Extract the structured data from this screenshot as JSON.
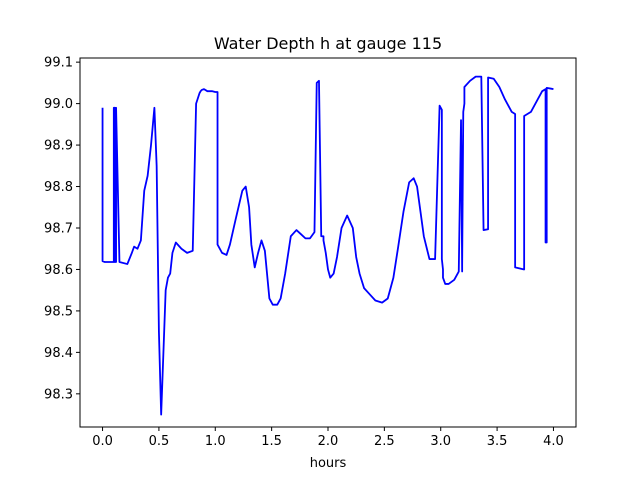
{
  "chart_data": {
    "type": "line",
    "title": "Water Depth h at gauge 115",
    "xlabel": "hours",
    "ylabel": "",
    "xlim": [
      -0.2,
      4.2
    ],
    "ylim": [
      98.22,
      99.11
    ],
    "xticks": [
      "0.0",
      "0.5",
      "1.0",
      "1.5",
      "2.0",
      "2.5",
      "3.0",
      "3.5",
      "4.0"
    ],
    "xtick_values": [
      0.0,
      0.5,
      1.0,
      1.5,
      2.0,
      2.5,
      3.0,
      3.5,
      4.0
    ],
    "yticks": [
      "98.3",
      "98.4",
      "98.5",
      "98.6",
      "98.7",
      "98.8",
      "98.9",
      "99.0",
      "99.1"
    ],
    "ytick_values": [
      98.3,
      98.4,
      98.5,
      98.6,
      98.7,
      98.8,
      98.9,
      99.0,
      99.1
    ],
    "grid": false,
    "series": [
      {
        "color": "#0000ff",
        "x": [
          0.0,
          0.0,
          0.02,
          0.1,
          0.1,
          0.11,
          0.11,
          0.12,
          0.12,
          0.15,
          0.22,
          0.26,
          0.28,
          0.31,
          0.34,
          0.37,
          0.4,
          0.43,
          0.46,
          0.48,
          0.5,
          0.52,
          0.54,
          0.56,
          0.58,
          0.6,
          0.62,
          0.65,
          0.7,
          0.75,
          0.8,
          0.83,
          0.86,
          0.87,
          0.88,
          0.9,
          0.93,
          0.97,
          1.0,
          1.02,
          1.02,
          1.06,
          1.1,
          1.13,
          1.18,
          1.24,
          1.27,
          1.3,
          1.32,
          1.35,
          1.38,
          1.41,
          1.44,
          1.48,
          1.51,
          1.55,
          1.58,
          1.62,
          1.67,
          1.72,
          1.76,
          1.8,
          1.84,
          1.88,
          1.9,
          1.92,
          1.92,
          1.94,
          1.96,
          1.96,
          1.98,
          2.0,
          2.02,
          2.05,
          2.08,
          2.12,
          2.17,
          2.22,
          2.25,
          2.28,
          2.32,
          2.37,
          2.42,
          2.48,
          2.53,
          2.58,
          2.62,
          2.67,
          2.72,
          2.76,
          2.79,
          2.82,
          2.85,
          2.9,
          2.95,
          2.99,
          3.01,
          3.01,
          3.02,
          3.02,
          3.04,
          3.07,
          3.12,
          3.16,
          3.18,
          3.18,
          3.19,
          3.19,
          3.2,
          3.2,
          3.21,
          3.21,
          3.26,
          3.31,
          3.36,
          3.38,
          3.38,
          3.42,
          3.42,
          3.47,
          3.52,
          3.57,
          3.63,
          3.66,
          3.66,
          3.74,
          3.74,
          3.8,
          3.86,
          3.9,
          3.93,
          3.93,
          3.94,
          3.94,
          3.98,
          4.0
        ],
        "y": [
          98.99,
          98.62,
          98.618,
          98.618,
          98.99,
          98.99,
          98.618,
          98.618,
          98.99,
          98.618,
          98.613,
          98.64,
          98.655,
          98.65,
          98.67,
          98.79,
          98.826,
          98.9,
          98.99,
          98.85,
          98.45,
          98.25,
          98.4,
          98.55,
          98.58,
          98.59,
          98.64,
          98.665,
          98.65,
          98.64,
          98.645,
          99.0,
          99.025,
          99.03,
          99.033,
          99.035,
          99.03,
          99.03,
          99.028,
          99.028,
          98.66,
          98.64,
          98.635,
          98.66,
          98.72,
          98.79,
          98.8,
          98.75,
          98.66,
          98.605,
          98.64,
          98.67,
          98.645,
          98.53,
          98.515,
          98.515,
          98.53,
          98.59,
          98.68,
          98.695,
          98.685,
          98.675,
          98.675,
          98.69,
          99.05,
          99.055,
          99.055,
          98.68,
          98.68,
          98.67,
          98.64,
          98.6,
          98.58,
          98.59,
          98.63,
          98.7,
          98.73,
          98.7,
          98.63,
          98.59,
          98.555,
          98.54,
          98.525,
          98.52,
          98.53,
          98.58,
          98.65,
          98.74,
          98.81,
          98.82,
          98.8,
          98.74,
          98.68,
          98.625,
          98.625,
          98.995,
          98.985,
          98.625,
          98.6,
          98.58,
          98.565,
          98.565,
          98.575,
          98.595,
          98.96,
          98.96,
          98.595,
          98.61,
          98.98,
          98.98,
          99.0,
          99.04,
          99.055,
          99.065,
          99.065,
          98.695,
          98.695,
          98.697,
          99.063,
          99.06,
          99.04,
          99.01,
          98.98,
          98.975,
          98.605,
          98.6,
          98.97,
          98.98,
          99.01,
          99.03,
          99.035,
          98.665,
          98.665,
          99.038,
          99.036,
          99.035
        ]
      }
    ]
  }
}
